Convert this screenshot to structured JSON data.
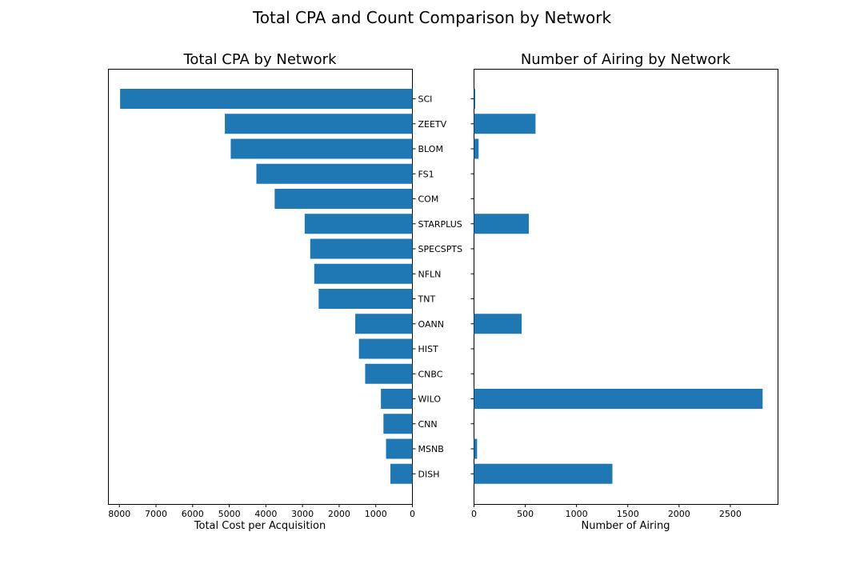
{
  "figure_title": "Total CPA and Count Comparison by Network",
  "colors": {
    "bar": "#1f77b4"
  },
  "chart_data": [
    {
      "type": "bar",
      "orientation": "horizontal",
      "x_axis_inverted": true,
      "title": "Total CPA by Network",
      "xlabel": "Total Cost per Acquisition",
      "ylabel": "",
      "xlim": [
        0,
        8300
      ],
      "xticks": [
        0,
        1000,
        2000,
        3000,
        4000,
        5000,
        6000,
        7000,
        8000
      ],
      "categories": [
        "SCI",
        "ZEETV",
        "BLOM",
        "FS1",
        "COM",
        "STARPLUS",
        "SPECSPTS",
        "NFLN",
        "TNT",
        "OANN",
        "HIST",
        "CNBC",
        "WILO",
        "CNN",
        "MSNB",
        "DISH"
      ],
      "values": [
        7980,
        5120,
        4960,
        4260,
        3760,
        2940,
        2790,
        2680,
        2560,
        1560,
        1460,
        1290,
        860,
        790,
        720,
        600
      ],
      "grid": false,
      "legend": "none"
    },
    {
      "type": "bar",
      "orientation": "horizontal",
      "title": "Number of Airing by Network",
      "xlabel": "Number of Airing",
      "ylabel": "",
      "xlim": [
        0,
        2965
      ],
      "xticks": [
        0,
        500,
        1000,
        1500,
        2000,
        2500
      ],
      "categories": [
        "SCI",
        "ZEETV",
        "BLOM",
        "FS1",
        "COM",
        "STARPLUS",
        "SPECSPTS",
        "NFLN",
        "TNT",
        "OANN",
        "HIST",
        "CNBC",
        "WILO",
        "CNN",
        "MSNB",
        "DISH"
      ],
      "values": [
        12,
        600,
        45,
        0,
        0,
        535,
        0,
        0,
        0,
        465,
        0,
        0,
        2815,
        0,
        30,
        1350
      ],
      "grid": false,
      "legend": "none"
    }
  ]
}
